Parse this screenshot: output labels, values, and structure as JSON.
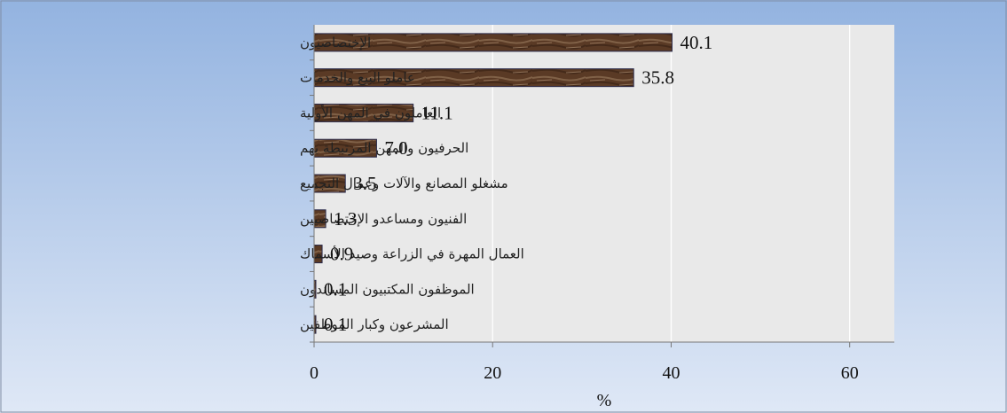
{
  "chart_data": {
    "type": "bar",
    "orientation": "horizontal",
    "categories": [
      "الإختصاصيون",
      "عاملو البيع والخدمات",
      "العاملون في المهن الأولية",
      "الحرفيون والمهن المرتبطة بهم",
      "مشغلو المصانع والآلات وعمال التجميع",
      "الفنيون ومساعدو الإختصاصيين",
      "العمال المهرة في الزراعة وصيد الأسماك",
      "الموظفون المكتبيون المساندون",
      "المشرعون وكبار الموظفين"
    ],
    "values": [
      40.1,
      35.8,
      11.1,
      7.0,
      3.5,
      1.3,
      0.9,
      0.1,
      0.1
    ],
    "value_labels": [
      "40.1",
      "35.8",
      "11.1",
      "7.0",
      "3.5",
      "1.3",
      "0.9",
      "0.1",
      "0.1"
    ],
    "xlabel": "%",
    "xlim": [
      0,
      65
    ],
    "xticks": [
      0,
      20,
      40,
      60
    ],
    "grid": "vertical",
    "colors": {
      "bar": "#5a3a25",
      "bar_texture": "#8a6a50",
      "plot_background": "#e9e9e9",
      "page_background_top": "#93b3e0",
      "page_background_bottom": "#dfe8f6",
      "grid": "#ffffff"
    }
  }
}
